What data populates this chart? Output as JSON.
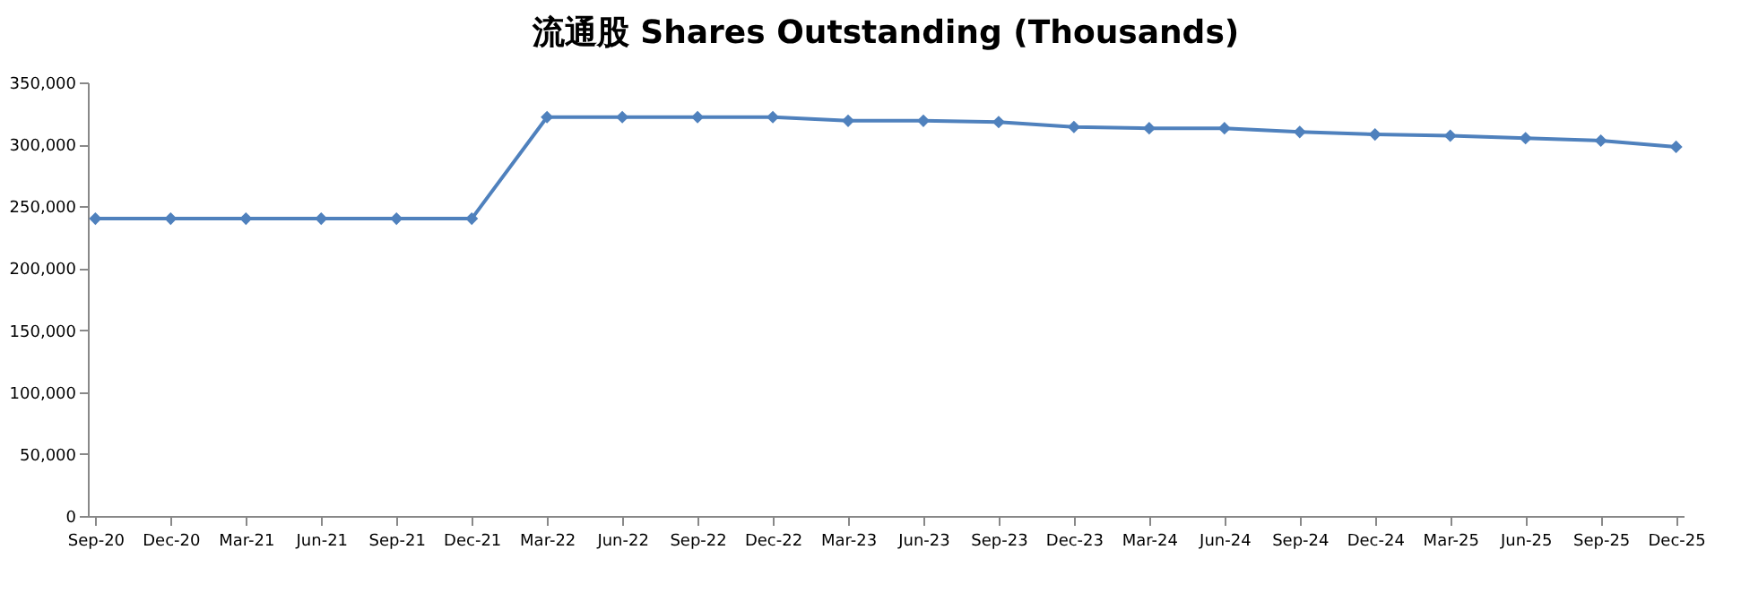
{
  "chart_data": {
    "type": "line",
    "title": "流通股 Shares Outstanding (Thousands)",
    "categories": [
      "Sep-20",
      "Dec-20",
      "Mar-21",
      "Jun-21",
      "Sep-21",
      "Dec-21",
      "Mar-22",
      "Jun-22",
      "Sep-22",
      "Dec-22",
      "Mar-23",
      "Jun-23",
      "Sep-23",
      "Dec-23",
      "Mar-24",
      "Jun-24",
      "Sep-24",
      "Dec-24",
      "Mar-25",
      "Jun-25",
      "Sep-25",
      "Dec-25"
    ],
    "series": [
      {
        "color": "#4f81bd",
        "values": [
          240000,
          240000,
          240000,
          240000,
          240000,
          240000,
          322000,
          322000,
          322000,
          322000,
          319000,
          319000,
          318000,
          314000,
          313000,
          313000,
          310000,
          308000,
          307000,
          305000,
          303000,
          298000
        ]
      }
    ],
    "ylim": [
      0,
      350000
    ],
    "yticks": [
      0,
      {
        "value": 50000,
        "label": "50,000"
      },
      {
        "value": 100000,
        "label": "100,000"
      },
      {
        "value": 150000,
        "label": "150,000"
      },
      {
        "value": 200000,
        "label": "200,000"
      },
      {
        "value": 250000,
        "label": "250,000"
      },
      {
        "value": 300000,
        "label": "300,000"
      },
      {
        "value": 350000,
        "label": "350,000"
      }
    ],
    "grid": false,
    "marker": "diamond",
    "line_style": "solid"
  }
}
